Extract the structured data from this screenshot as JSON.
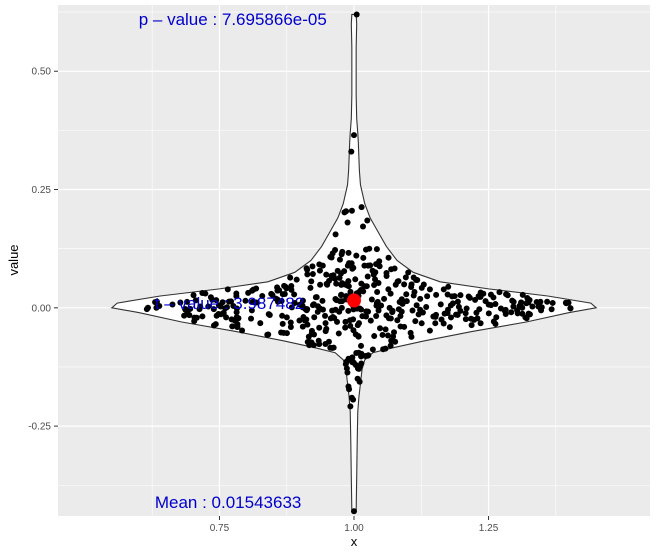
{
  "chart_data": {
    "type": "scatter",
    "subtype": "violin-with-jitter",
    "xlabel": "x",
    "ylabel": "value",
    "xlim": [
      0.45,
      1.55
    ],
    "ylim": [
      -0.44,
      0.64
    ],
    "x_ticks": [
      {
        "value": 0.75,
        "label": "0.75"
      },
      {
        "value": 1.0,
        "label": "1.00"
      },
      {
        "value": 1.25,
        "label": "1.25"
      }
    ],
    "y_ticks": [
      {
        "value": 0.5,
        "label": "0.50"
      },
      {
        "value": 0.25,
        "label": "0.25"
      },
      {
        "value": 0.0,
        "label": "0.00"
      },
      {
        "value": -0.25,
        "label": "-0.25"
      }
    ],
    "grid": true,
    "panel_background": "#ebebeb",
    "grid_color": "#ffffff",
    "point_color": "#000000",
    "mean_point": {
      "x": 1.0,
      "y": 0.01543633,
      "color": "#ff0000"
    },
    "violin": {
      "center_x": 1.0,
      "fill": "#ffffff",
      "stroke": "#333333",
      "profile": [
        [
          -0.43,
          0.004
        ],
        [
          -0.36,
          0.005
        ],
        [
          -0.28,
          0.006
        ],
        [
          -0.22,
          0.007
        ],
        [
          -0.19,
          0.009
        ],
        [
          -0.16,
          0.012
        ],
        [
          -0.13,
          0.015
        ],
        [
          -0.11,
          0.02
        ],
        [
          -0.095,
          0.035
        ],
        [
          -0.085,
          0.07
        ],
        [
          -0.07,
          0.13
        ],
        [
          -0.05,
          0.22
        ],
        [
          -0.03,
          0.32
        ],
        [
          -0.01,
          0.4
        ],
        [
          0.0,
          0.45
        ],
        [
          0.01,
          0.44
        ],
        [
          0.025,
          0.36
        ],
        [
          0.04,
          0.25
        ],
        [
          0.055,
          0.16
        ],
        [
          0.075,
          0.11
        ],
        [
          0.1,
          0.08
        ],
        [
          0.13,
          0.06
        ],
        [
          0.16,
          0.045
        ],
        [
          0.19,
          0.03
        ],
        [
          0.22,
          0.02
        ],
        [
          0.26,
          0.012
        ],
        [
          0.29,
          0.01
        ],
        [
          0.32,
          0.009
        ],
        [
          0.35,
          0.008
        ],
        [
          0.37,
          0.007
        ],
        [
          0.4,
          0.005
        ],
        [
          0.45,
          0.004
        ],
        [
          0.5,
          0.004
        ],
        [
          0.55,
          0.004
        ],
        [
          0.6,
          0.005
        ],
        [
          0.62,
          0.004
        ]
      ]
    },
    "point_extremes": [
      {
        "x": 1.005,
        "y": 0.62
      },
      {
        "x": 1.0,
        "y": -0.43
      },
      {
        "x": 1.0,
        "y": 0.365
      },
      {
        "x": 0.995,
        "y": 0.33
      },
      {
        "x": 0.996,
        "y": -0.19
      }
    ],
    "point_cloud": {
      "count": 470,
      "mean": 0.01543633,
      "seed": 7
    },
    "annotations": [
      {
        "text": "p – value : 7.695866e-05",
        "x": 0.6,
        "y": 0.61,
        "color": "#0000cc"
      },
      {
        "text": "t – value : 3.987482",
        "x": 0.63,
        "y": 0.01,
        "color": "#0000cc"
      },
      {
        "text": "Mean : 0.01543633",
        "x": 0.63,
        "y": -0.41,
        "color": "#0000cc"
      }
    ]
  }
}
